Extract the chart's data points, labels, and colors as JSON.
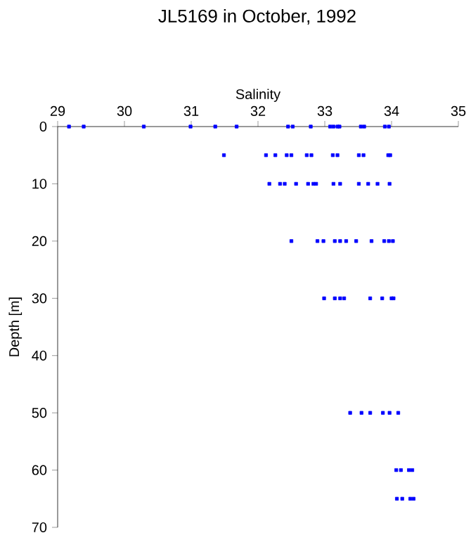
{
  "chart_data": {
    "type": "scatter",
    "title": "JL5169 in October, 1992",
    "xlabel": "Salinity",
    "ylabel": "Depth [m]",
    "xlim": [
      29,
      35
    ],
    "xticks": [
      29,
      30,
      31,
      32,
      33,
      34,
      35
    ],
    "ylim": [
      70,
      0
    ],
    "yticks": [
      0,
      10,
      20,
      30,
      40,
      50,
      60,
      70
    ],
    "marker": "square",
    "series": [
      {
        "color": "#0000ff",
        "x": [
          29.17,
          29.39,
          30.29,
          30.99,
          31.36,
          31.68,
          32.45,
          32.52,
          32.79,
          33.08,
          33.13,
          33.19,
          33.22,
          33.54,
          33.59,
          33.9,
          33.96,
          31.49,
          32.12,
          32.26,
          32.43,
          32.5,
          32.73,
          32.8,
          33.12,
          33.19,
          33.51,
          33.58,
          33.95,
          33.98,
          32.17,
          32.33,
          32.4,
          32.57,
          32.75,
          32.83,
          32.87,
          33.13,
          33.23,
          33.51,
          33.65,
          33.79,
          33.97,
          32.5,
          32.89,
          32.98,
          33.15,
          33.23,
          33.32,
          33.47,
          33.7,
          33.89,
          33.96,
          34.02,
          32.99,
          33.15,
          33.23,
          33.29,
          33.68,
          33.86,
          34.0,
          34.03,
          33.38,
          33.55,
          33.68,
          33.87,
          33.97,
          34.1,
          34.07,
          34.14,
          34.26,
          34.31,
          34.08,
          34.16,
          34.28,
          34.33
        ],
        "values": [
          0,
          0,
          0,
          0,
          0,
          0,
          0,
          0,
          0,
          0,
          0,
          0,
          0,
          0,
          0,
          0,
          0,
          5,
          5,
          5,
          5,
          5,
          5,
          5,
          5,
          5,
          5,
          5,
          5,
          5,
          10,
          10,
          10,
          10,
          10,
          10,
          10,
          10,
          10,
          10,
          10,
          10,
          10,
          20,
          20,
          20,
          20,
          20,
          20,
          20,
          20,
          20,
          20,
          20,
          30,
          30,
          30,
          30,
          30,
          30,
          30,
          30,
          50,
          50,
          50,
          50,
          50,
          50,
          60,
          60,
          60,
          60,
          65,
          65,
          65,
          65
        ]
      }
    ]
  }
}
